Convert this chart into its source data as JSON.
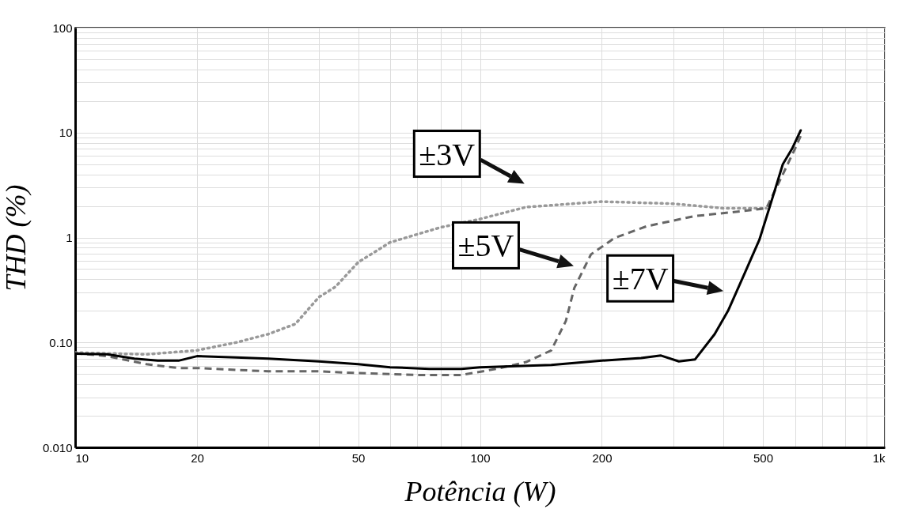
{
  "chart_data": {
    "type": "line",
    "xlabel": "Potência (W)",
    "ylabel": "THD (%)",
    "log": "xy",
    "grid": true,
    "xlim": [
      10,
      1000
    ],
    "ylim": [
      0.01,
      100
    ],
    "xticks": [
      10,
      20,
      {
        "value": 30,
        "label": null
      },
      {
        "value": 40,
        "label": null
      },
      50,
      {
        "value": 60,
        "label": null
      },
      {
        "value": 70,
        "label": null
      },
      {
        "value": 80,
        "label": null
      },
      {
        "value": 90,
        "label": null
      },
      100,
      200,
      {
        "value": 300,
        "label": null
      },
      {
        "value": 400,
        "label": null
      },
      500,
      {
        "value": 600,
        "label": null
      },
      {
        "value": 700,
        "label": null
      },
      {
        "value": 800,
        "label": null
      },
      {
        "value": 900,
        "label": null
      },
      {
        "value": 1000,
        "label": "1k"
      }
    ],
    "yticks": [
      {
        "value": 0.01,
        "label": "0.010"
      },
      {
        "value": 0.02,
        "label": null
      },
      {
        "value": 0.03,
        "label": null
      },
      {
        "value": 0.04,
        "label": null
      },
      {
        "value": 0.05,
        "label": null
      },
      {
        "value": 0.06,
        "label": null
      },
      {
        "value": 0.07,
        "label": null
      },
      {
        "value": 0.08,
        "label": null
      },
      {
        "value": 0.09,
        "label": null
      },
      {
        "value": 0.1,
        "label": "0.10"
      },
      {
        "value": 0.2,
        "label": null
      },
      {
        "value": 0.3,
        "label": null
      },
      {
        "value": 0.4,
        "label": null
      },
      {
        "value": 0.5,
        "label": null
      },
      {
        "value": 0.6,
        "label": null
      },
      {
        "value": 0.7,
        "label": null
      },
      {
        "value": 0.8,
        "label": null
      },
      {
        "value": 0.9,
        "label": null
      },
      1,
      {
        "value": 2,
        "label": null
      },
      {
        "value": 3,
        "label": null
      },
      {
        "value": 4,
        "label": null
      },
      {
        "value": 5,
        "label": null
      },
      {
        "value": 6,
        "label": null
      },
      {
        "value": 7,
        "label": null
      },
      {
        "value": 8,
        "label": null
      },
      {
        "value": 9,
        "label": null
      },
      10,
      {
        "value": 20,
        "label": null
      },
      {
        "value": 30,
        "label": null
      },
      {
        "value": 40,
        "label": null
      },
      {
        "value": 50,
        "label": null
      },
      {
        "value": 60,
        "label": null
      },
      {
        "value": 70,
        "label": null
      },
      {
        "value": 80,
        "label": null
      },
      {
        "value": 90,
        "label": null
      },
      100
    ],
    "series": [
      {
        "color": "#999999",
        "line_style": "dotted",
        "x": [
          10,
          15,
          20,
          25,
          30,
          35,
          40,
          44,
          50,
          60,
          80,
          100,
          130,
          200,
          300,
          400,
          510
        ],
        "values": [
          0.08,
          0.077,
          0.084,
          0.1,
          0.12,
          0.15,
          0.27,
          0.34,
          0.58,
          0.9,
          1.25,
          1.5,
          1.95,
          2.2,
          2.1,
          1.9,
          1.9
        ]
      },
      {
        "color": "#666666",
        "line_style": "dashed",
        "x": [
          10,
          12,
          15,
          18,
          20,
          30,
          40,
          50,
          70,
          90,
          110,
          130,
          150,
          163,
          171,
          188,
          215,
          258,
          339,
          425,
          510,
          560,
          600,
          620
        ],
        "values": [
          0.079,
          0.074,
          0.062,
          0.057,
          0.057,
          0.053,
          0.053,
          0.051,
          0.049,
          0.049,
          0.056,
          0.065,
          0.084,
          0.16,
          0.33,
          0.69,
          0.99,
          1.28,
          1.6,
          1.75,
          1.9,
          4,
          7,
          9.3
        ]
      },
      {
        "color": "#000000",
        "line_style": "solid",
        "x": [
          10,
          12,
          14,
          16,
          18,
          20,
          25,
          30,
          40,
          50,
          60,
          75,
          90,
          100,
          150,
          200,
          250,
          280,
          310,
          340,
          380,
          410,
          450,
          490,
          530,
          560,
          590,
          620
        ],
        "values": [
          0.078,
          0.077,
          0.07,
          0.067,
          0.067,
          0.074,
          0.072,
          0.07,
          0.066,
          0.062,
          0.058,
          0.056,
          0.056,
          0.058,
          0.061,
          0.067,
          0.071,
          0.075,
          0.066,
          0.069,
          0.12,
          0.2,
          0.45,
          0.95,
          2.5,
          5,
          7,
          10.5
        ]
      }
    ],
    "annotations": [
      {
        "text": "±3V",
        "x": 130,
        "y": 2
      },
      {
        "text": "±5V",
        "x": 172,
        "y": 0.33
      },
      {
        "text": "±7V",
        "x": 403,
        "y": 0.19
      }
    ]
  }
}
